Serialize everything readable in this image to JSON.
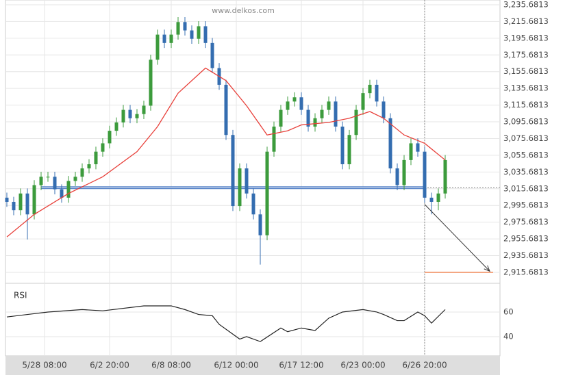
{
  "chart_data": {
    "type": "candlestick",
    "watermark": "www.delkos.com",
    "ylim": [
      2905.86,
      3241.41
    ],
    "xlim": [
      -0.2,
      72
    ],
    "yticks": [
      {
        "value": 3235.6813,
        "label": "3,235.6813"
      },
      {
        "value": 3215.6813,
        "label": "3,215.6813"
      },
      {
        "value": 3195.6813,
        "label": "3,195.6813"
      },
      {
        "value": 3175.6813,
        "label": "3,175.6813"
      },
      {
        "value": 3155.6813,
        "label": "3,155.6813"
      },
      {
        "value": 3135.6813,
        "label": "3,135.6813"
      },
      {
        "value": 3115.6813,
        "label": "3,115.6813"
      },
      {
        "value": 3095.6813,
        "label": "3,095.6813"
      },
      {
        "value": 3075.6813,
        "label": "3,075.6813"
      },
      {
        "value": 3055.6813,
        "label": "3,055.6813"
      },
      {
        "value": 3035.6813,
        "label": "3,035.6813"
      },
      {
        "value": 3015.6813,
        "label": "3,015.6813"
      },
      {
        "value": 2995.6813,
        "label": "2,995.6813"
      },
      {
        "value": 2975.6813,
        "label": "2,975.6813"
      },
      {
        "value": 2955.6813,
        "label": "2,955.6813"
      },
      {
        "value": 2935.6813,
        "label": "2,935.6813"
      },
      {
        "value": 2915.6813,
        "label": "2,915.6813"
      }
    ],
    "xticks": [
      {
        "value": 5.5,
        "label": "5/28 08:00"
      },
      {
        "value": 15,
        "label": "6/2 20:00"
      },
      {
        "value": 24,
        "label": "6/8 08:00"
      },
      {
        "value": 33.5,
        "label": "6/12 00:00"
      },
      {
        "value": 43,
        "label": "6/17 12:00"
      },
      {
        "value": 52,
        "label": "6/23 00:00"
      },
      {
        "value": 61,
        "label": "6/26 20:00"
      }
    ],
    "up_color": "#3c9b3c",
    "down_color": "#346db0",
    "open": [
      3005,
      3000,
      2990,
      3010,
      2985,
      3020,
      3030,
      3030,
      3015,
      3005,
      3025,
      3030,
      3040,
      3045,
      3060,
      3070,
      3085,
      3095,
      3110,
      3100,
      3105,
      3115,
      3170,
      3200,
      3190,
      3200,
      3215,
      3205,
      3195,
      3210,
      3190,
      3160,
      3140,
      3080,
      2995,
      3040,
      3010,
      2985,
      2960,
      3060,
      3090,
      3110,
      3120,
      3125,
      3110,
      3090,
      3100,
      3110,
      3120,
      3090,
      3045,
      3080,
      3110,
      3130,
      3140,
      3120,
      3100,
      3040,
      3020,
      3050,
      3070,
      3060,
      3005,
      3000,
      3010
    ],
    "high": [
      3011,
      3006,
      3016,
      3016,
      3026,
      3036,
      3036,
      3036,
      3021,
      3031,
      3036,
      3046,
      3051,
      3066,
      3076,
      3091,
      3101,
      3116,
      3116,
      3111,
      3121,
      3176,
      3206,
      3206,
      3206,
      3221,
      3221,
      3211,
      3216,
      3216,
      3196,
      3166,
      3146,
      3086,
      3046,
      3046,
      3016,
      2991,
      3066,
      3096,
      3116,
      3126,
      3131,
      3131,
      3116,
      3106,
      3116,
      3126,
      3126,
      3096,
      3086,
      3116,
      3136,
      3146,
      3146,
      3126,
      3106,
      3046,
      3056,
      3076,
      3076,
      3066,
      3011,
      3016,
      3056
    ],
    "low": [
      2994,
      2984,
      2984,
      2955,
      2979,
      3014,
      3024,
      3009,
      2999,
      2999,
      3019,
      3024,
      3034,
      3039,
      3054,
      3064,
      3079,
      3089,
      3094,
      3094,
      3099,
      3109,
      3164,
      3184,
      3184,
      3194,
      3199,
      3189,
      3189,
      3184,
      3154,
      3134,
      3074,
      2989,
      2989,
      3004,
      2979,
      2925,
      2954,
      3054,
      3084,
      3104,
      3114,
      3104,
      3084,
      3084,
      3094,
      3104,
      3084,
      3039,
      3039,
      3074,
      3104,
      3124,
      3114,
      3094,
      3034,
      3014,
      3014,
      3044,
      3054,
      2999,
      2985,
      2990,
      3004
    ],
    "close": [
      3000,
      2990,
      3010,
      2985,
      3020,
      3030,
      3030,
      3015,
      3005,
      3025,
      3030,
      3040,
      3045,
      3060,
      3070,
      3085,
      3095,
      3110,
      3100,
      3105,
      3115,
      3170,
      3200,
      3190,
      3200,
      3215,
      3205,
      3195,
      3210,
      3190,
      3160,
      3140,
      3080,
      2995,
      3040,
      3010,
      2985,
      2960,
      3060,
      3090,
      3110,
      3120,
      3125,
      3110,
      3090,
      3100,
      3110,
      3120,
      3090,
      3045,
      3080,
      3110,
      3130,
      3140,
      3120,
      3100,
      3040,
      3020,
      3050,
      3070,
      3060,
      3005,
      3000,
      3010,
      3050
    ],
    "ma": {
      "color": "#e8403a",
      "x": [
        0,
        4,
        9,
        14,
        19,
        22,
        25,
        29,
        32,
        35,
        38,
        41,
        43,
        47,
        50,
        53,
        55,
        58,
        61,
        64
      ],
      "values": [
        2958,
        2985,
        3010,
        3030,
        3060,
        3090,
        3130,
        3160,
        3145,
        3115,
        3080,
        3085,
        3092,
        3095,
        3100,
        3108,
        3100,
        3080,
        3070,
        3050
      ]
    },
    "support": {
      "color": "#5b86c9",
      "value": 3017,
      "x": [
        5,
        61
      ]
    },
    "target": {
      "color": "#f08a5a",
      "value": 2915.6813,
      "x": [
        61,
        71
      ]
    },
    "arrow": {
      "x": [
        61,
        70.5
      ],
      "values": [
        2997,
        2917
      ]
    },
    "rsi": {
      "label": "RSI",
      "ylim": [
        24.4,
        80
      ],
      "yticks": [
        40,
        60
      ],
      "x": [
        0,
        3,
        6,
        11,
        14,
        20,
        24,
        26,
        28,
        30,
        31,
        34,
        35,
        37,
        40,
        41,
        43,
        45,
        47,
        49,
        52,
        54,
        55,
        57,
        58,
        60,
        61,
        62,
        64
      ],
      "values": [
        56,
        58,
        60,
        62,
        61,
        65,
        65,
        62,
        58,
        57,
        50,
        38,
        40,
        36,
        47,
        44,
        47,
        45,
        55,
        60,
        62,
        60,
        58,
        53,
        53,
        60,
        57,
        51,
        62
      ]
    }
  }
}
